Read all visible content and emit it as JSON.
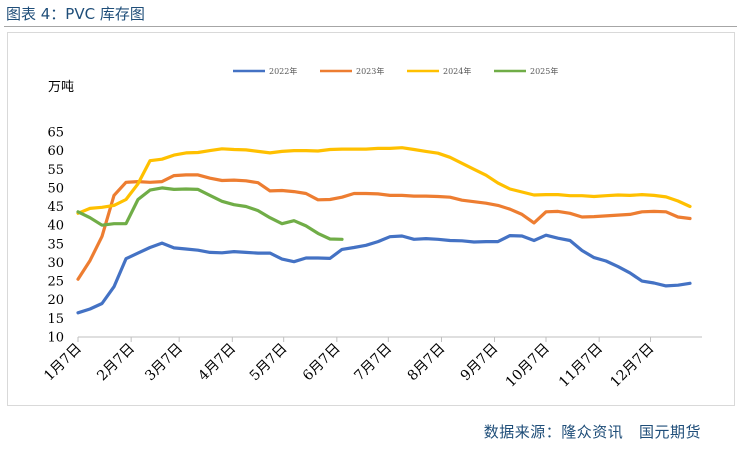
{
  "figure_title": "图表 4：PVC 库存图",
  "source_note": "数据来源：隆众资讯   国元期货",
  "chart_data": {
    "type": "line",
    "title": "",
    "xlabel": "",
    "ylabel": "万吨",
    "ylim": [
      10,
      65
    ],
    "yticks": [
      10,
      15,
      20,
      25,
      30,
      35,
      40,
      45,
      50,
      55,
      60,
      65
    ],
    "xlim": [
      1,
      53
    ],
    "xticks": [
      {
        "x": 1,
        "label": "1月7日"
      },
      {
        "x": 5.43,
        "label": "2月7日"
      },
      {
        "x": 9.43,
        "label": "3月7日"
      },
      {
        "x": 13.86,
        "label": "4月7日"
      },
      {
        "x": 18.14,
        "label": "5月7日"
      },
      {
        "x": 22.57,
        "label": "6月7日"
      },
      {
        "x": 26.86,
        "label": "7月7日"
      },
      {
        "x": 31.29,
        "label": "8月7日"
      },
      {
        "x": 35.71,
        "label": "9月7日"
      },
      {
        "x": 40,
        "label": "10月7日"
      },
      {
        "x": 44.43,
        "label": "11月7日"
      },
      {
        "x": 48.71,
        "label": "12月7日"
      }
    ],
    "grid": false,
    "legend_position": "top",
    "series": [
      {
        "name": "2022年",
        "color": "#4472c4",
        "values": [
          16.5,
          17.5,
          19,
          23.5,
          31,
          32.5,
          34,
          35.2,
          33.9,
          33.6,
          33.3,
          32.7,
          32.6,
          32.9,
          32.7,
          32.5,
          32.5,
          30.9,
          30.2,
          31.2,
          31.2,
          31.1,
          33.5,
          34,
          34.6,
          35.6,
          36.9,
          37.1,
          36.2,
          36.4,
          36.2,
          35.9,
          35.8,
          35.5,
          35.6,
          35.6,
          37.2,
          37.1,
          35.9,
          37.3,
          36.5,
          35.9,
          33.2,
          31.3,
          30.4,
          28.9,
          27.2,
          25,
          24.5,
          23.7,
          23.9,
          24.4
        ]
      },
      {
        "name": "2023年",
        "color": "#ed7d31",
        "values": [
          25.5,
          30.5,
          37,
          48,
          51.5,
          51.7,
          51.5,
          51.7,
          53.3,
          53.5,
          53.5,
          52.6,
          52,
          52.1,
          51.9,
          51.4,
          49.2,
          49.3,
          49,
          48.5,
          46.8,
          46.9,
          47.5,
          48.5,
          48.5,
          48.4,
          48,
          48,
          47.8,
          47.8,
          47.7,
          47.5,
          46.7,
          46.3,
          45.9,
          45.3,
          44.3,
          42.9,
          40.6,
          43.6,
          43.7,
          43.2,
          42.2,
          42.3,
          42.5,
          42.7,
          42.9,
          43.6,
          43.7,
          43.6,
          42.2,
          41.8
        ]
      },
      {
        "name": "2024年",
        "color": "#ffc000",
        "values": [
          43.2,
          44.5,
          44.8,
          45.3,
          46.9,
          51.1,
          57.3,
          57.7,
          58.8,
          59.4,
          59.5,
          60,
          60.5,
          60.3,
          60.2,
          59.8,
          59.4,
          59.8,
          60,
          60,
          59.9,
          60.3,
          60.4,
          60.4,
          60.4,
          60.6,
          60.6,
          60.8,
          60.3,
          59.8,
          59.3,
          58.2,
          56.6,
          55,
          53.4,
          51.3,
          49.7,
          48.9,
          48.1,
          48.2,
          48.2,
          47.9,
          47.9,
          47.7,
          47.9,
          48.1,
          48,
          48.2,
          48,
          47.6,
          46.5,
          45
        ]
      },
      {
        "name": "2025年",
        "color": "#70ad47",
        "values": [
          43.6,
          42,
          40,
          40.4,
          40.4,
          46.9,
          49.4,
          50,
          49.6,
          49.7,
          49.6,
          48,
          46.4,
          45.5,
          45,
          43.9,
          42,
          40.4,
          41.2,
          39.8,
          37.8,
          36.3,
          36.2
        ]
      }
    ]
  }
}
